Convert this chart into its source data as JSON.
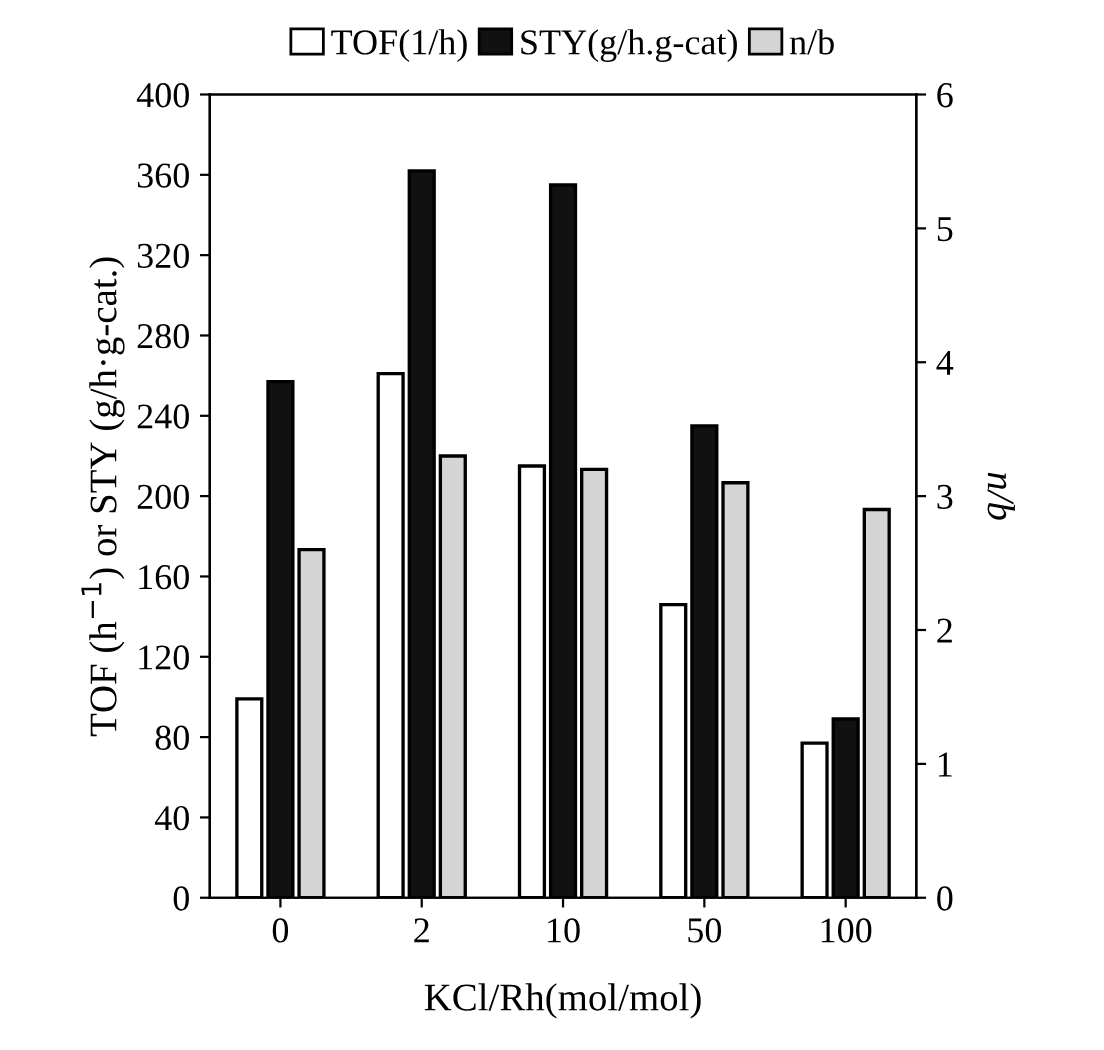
{
  "chart_data": {
    "type": "bar",
    "xlabel": "KCl/Rh(mol/mol)",
    "ylabel": "TOF (h$^{−1}$) or STY (g/h·g-cat.)",
    "y2label": "n/b",
    "categories": [
      "0",
      "2",
      "10",
      "50",
      "100"
    ],
    "series": [
      {
        "name": "TOF(1/h)",
        "color": "#ffffff",
        "values": [
          99,
          261,
          215,
          146,
          77
        ]
      },
      {
        "name": "STY(g/h.g-cat)",
        "color": "#111111",
        "values": [
          257,
          362,
          355,
          235,
          89
        ]
      },
      {
        "name": "n/b",
        "color": "#d4d4d4",
        "axis": "y2",
        "values": [
          2.6,
          3.3,
          3.2,
          3.1,
          2.9
        ]
      }
    ],
    "ylim": [
      0,
      400
    ],
    "yticks": [
      0,
      40,
      80,
      120,
      160,
      200,
      240,
      280,
      320,
      360,
      400
    ],
    "y2lim": [
      0,
      6
    ],
    "y2ticks": [
      0,
      1,
      2,
      3,
      4,
      5,
      6
    ],
    "legend": "top",
    "grid": false
  }
}
